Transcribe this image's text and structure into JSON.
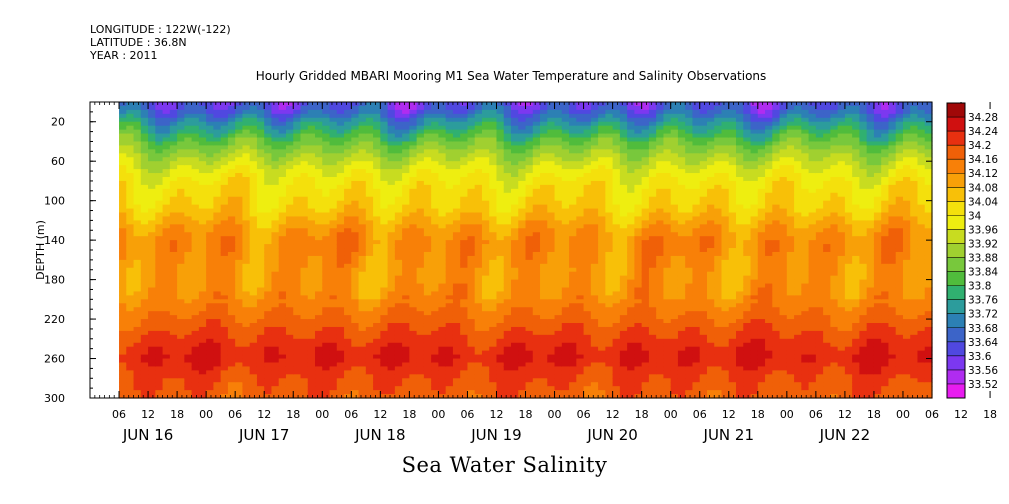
{
  "header": {
    "longitude": "LONGITUDE : 122W(-122)",
    "latitude": "LATITUDE : 36.8N",
    "year": "YEAR : 2011"
  },
  "chart_data": {
    "type": "heatmap",
    "title": "Hourly Gridded MBARI Mooring M1 Sea Water Temperature and Salinity Observations",
    "bottom_title": "Sea Water Salinity",
    "ylabel": "DEPTH (m)",
    "xlabel": "",
    "ylim": [
      300,
      0
    ],
    "yticks": [
      20,
      60,
      100,
      140,
      180,
      220,
      260,
      300
    ],
    "time_ticks": [
      "06",
      "12",
      "18",
      "00",
      "06",
      "12",
      "18",
      "00",
      "06",
      "12",
      "18",
      "00",
      "06",
      "12",
      "18",
      "00",
      "06",
      "12",
      "18",
      "00",
      "06",
      "12",
      "18",
      "00",
      "06",
      "12",
      "18",
      "00",
      "06",
      "12",
      "18",
      "00"
    ],
    "date_labels": [
      "JUN 16",
      "JUN 17",
      "JUN 18",
      "JUN 19",
      "JUN 20",
      "JUN 21",
      "JUN 22"
    ],
    "colorbar": {
      "levels": [
        33.52,
        33.56,
        33.6,
        33.64,
        33.68,
        33.72,
        33.76,
        33.8,
        33.84,
        33.88,
        33.92,
        33.96,
        34,
        34.04,
        34.08,
        34.12,
        34.16,
        34.2,
        34.24,
        34.28
      ],
      "level_labels": [
        "33.52",
        "33.56",
        "33.6",
        "33.64",
        "33.68",
        "33.72",
        "33.76",
        "33.8",
        "33.84",
        "33.88",
        "33.92",
        "33.96",
        "34",
        "34.04",
        "34.08",
        "34.12",
        "34.16",
        "34.2",
        "34.24",
        "34.28"
      ],
      "colors": [
        "#e81cf0",
        "#b02cf0",
        "#7c38f0",
        "#5048e0",
        "#3c64c8",
        "#2c80b4",
        "#2c9c9c",
        "#30b070",
        "#50bc3c",
        "#78c83c",
        "#a0d030",
        "#c8dc20",
        "#eeee10",
        "#f4e00c",
        "#f8c008",
        "#f8a008",
        "#f88008",
        "#f06008",
        "#e83010",
        "#d01010",
        "#a00808"
      ]
    },
    "profile": {
      "depths": [
        4,
        12,
        20,
        30,
        40,
        50,
        60,
        70,
        80,
        90,
        100,
        110,
        120,
        130,
        140,
        150,
        160,
        170,
        180,
        190,
        200,
        210,
        220,
        230,
        240,
        250,
        260,
        270,
        280,
        290,
        300
      ],
      "salinity": [
        33.62,
        33.66,
        33.72,
        33.78,
        33.84,
        33.89,
        33.93,
        33.97,
        34.0,
        34.02,
        34.03,
        34.05,
        34.08,
        34.11,
        34.13,
        34.13,
        34.12,
        34.11,
        34.11,
        34.12,
        34.13,
        34.15,
        34.17,
        34.19,
        34.21,
        34.23,
        34.24,
        34.22,
        34.2,
        34.19,
        34.18
      ]
    },
    "data_start_hour": 0,
    "data_end_hour": 168
  }
}
